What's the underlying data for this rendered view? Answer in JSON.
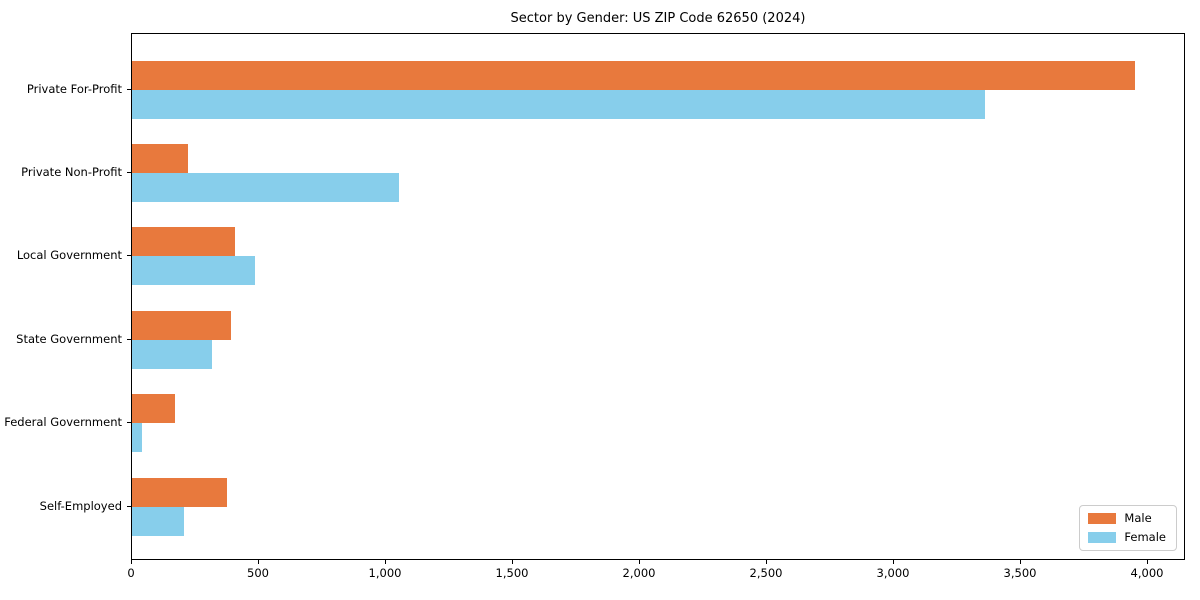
{
  "chart_data": {
    "type": "bar",
    "orientation": "horizontal",
    "title": "Sector by Gender: US ZIP Code 62650 (2024)",
    "xlabel": "",
    "ylabel": "",
    "categories": [
      "Private For-Profit",
      "Private Non-Profit",
      "Local Government",
      "State Government",
      "Federal Government",
      "Self-Employed"
    ],
    "series": [
      {
        "name": "Male",
        "color": "#e8793d",
        "values": [
          3950,
          220,
          405,
          390,
          170,
          375
        ]
      },
      {
        "name": "Female",
        "color": "#87ceeb",
        "values": [
          3360,
          1050,
          485,
          315,
          40,
          205
        ]
      }
    ],
    "xlim": [
      0,
      4150
    ],
    "xticks": [
      0,
      500,
      1000,
      1500,
      2000,
      2500,
      3000,
      3500,
      4000
    ],
    "xtick_labels": [
      "0",
      "500",
      "1,000",
      "1,500",
      "2,000",
      "2,500",
      "3,000",
      "3,500",
      "4,000"
    ],
    "grid": false,
    "legend_position": "lower right",
    "axis_color": "#000000",
    "background_color": "#ffffff"
  }
}
